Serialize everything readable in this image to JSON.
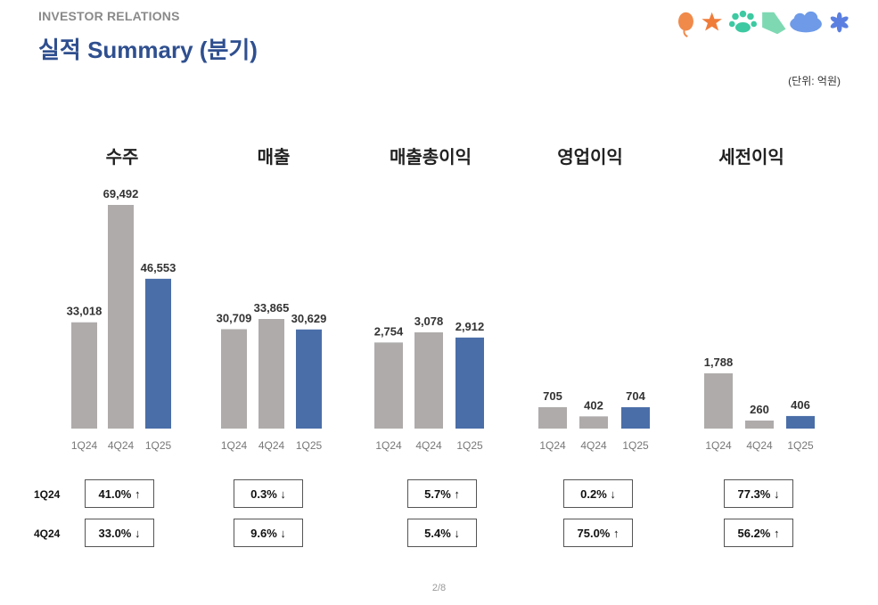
{
  "header": {
    "ir_label": "INVESTOR RELATIONS",
    "title": "실적 Summary (분기)",
    "unit": "(단위: 억원)"
  },
  "icons": [
    "orange-balloon-icon",
    "orange-star-icon",
    "green-paw-icon",
    "green-flag-icon",
    "blue-cloud-icon",
    "blue-flower-icon"
  ],
  "colors": {
    "prev_bar": "#afabab",
    "current_bar": "#4a6ea8",
    "title": "#2f4f8f"
  },
  "chart_data": [
    {
      "type": "bar",
      "title": "수주",
      "categories": [
        "1Q24",
        "4Q24",
        "1Q25"
      ],
      "values": [
        33018,
        69492,
        46553
      ],
      "labels": [
        "33,018",
        "69,492",
        "46,553"
      ]
    },
    {
      "type": "bar",
      "title": "매출",
      "categories": [
        "1Q24",
        "4Q24",
        "1Q25"
      ],
      "values": [
        30709,
        33865,
        30629
      ],
      "labels": [
        "30,709",
        "33,865",
        "30,629"
      ]
    },
    {
      "type": "bar",
      "title": "매출총이익",
      "categories": [
        "1Q24",
        "4Q24",
        "1Q25"
      ],
      "values": [
        2754,
        3078,
        2912
      ],
      "labels": [
        "2,754",
        "3,078",
        "2,912"
      ]
    },
    {
      "type": "bar",
      "title": "영업이익",
      "categories": [
        "1Q24",
        "4Q24",
        "1Q25"
      ],
      "values": [
        705,
        402,
        704
      ],
      "labels": [
        "705",
        "402",
        "704"
      ]
    },
    {
      "type": "bar",
      "title": "세전이익",
      "categories": [
        "1Q24",
        "4Q24",
        "1Q25"
      ],
      "values": [
        1788,
        260,
        406
      ],
      "labels": [
        "1,788",
        "260",
        "406"
      ]
    }
  ],
  "changes": {
    "row_labels": [
      "1Q24",
      "4Q24"
    ],
    "rows": [
      [
        "41.0% ↑",
        "0.3% ↓",
        "5.7% ↑",
        "0.2% ↓",
        "77.3% ↓"
      ],
      [
        "33.0% ↓",
        "9.6% ↓",
        "5.4% ↓",
        "75.0% ↑",
        "56.2% ↑"
      ]
    ]
  },
  "footer": {
    "page": "2/8"
  }
}
